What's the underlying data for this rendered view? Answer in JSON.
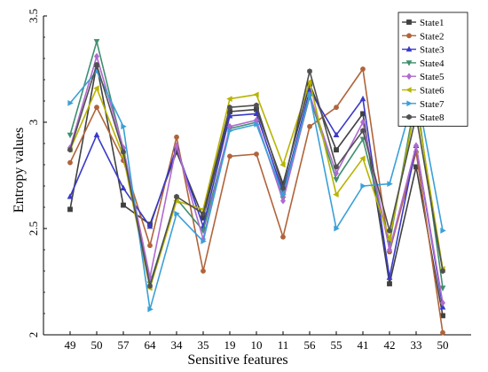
{
  "chart_data": {
    "type": "line",
    "xlabel": "Sensitive features",
    "ylabel": "Entropy values",
    "categories": [
      "49",
      "50",
      "57",
      "64",
      "34",
      "35",
      "19",
      "10",
      "11",
      "56",
      "55",
      "41",
      "42",
      "33",
      "50"
    ],
    "ylim": [
      2.0,
      3.5
    ],
    "yticks": [
      2,
      2.5,
      3,
      3.5
    ],
    "ytick_labels": [
      "2",
      "2.5",
      "3",
      "3.5"
    ],
    "grid": false,
    "legend_position": "top-right",
    "series": [
      {
        "name": "State1",
        "color": "#404040",
        "marker": "square",
        "values": [
          2.59,
          3.27,
          2.61,
          2.52,
          2.86,
          2.55,
          3.05,
          3.06,
          2.71,
          3.18,
          2.87,
          3.04,
          2.24,
          2.79,
          2.09
        ]
      },
      {
        "name": "State2",
        "color": "#b0643a",
        "marker": "circle",
        "values": [
          2.81,
          3.07,
          2.82,
          2.42,
          2.93,
          2.3,
          2.84,
          2.85,
          2.46,
          2.98,
          3.07,
          3.25,
          2.39,
          2.86,
          2.01
        ]
      },
      {
        "name": "State3",
        "color": "#3a3ac8",
        "marker": "triangle-up",
        "values": [
          2.65,
          2.94,
          2.69,
          2.51,
          2.88,
          2.51,
          3.03,
          3.04,
          2.67,
          3.15,
          2.94,
          3.11,
          2.27,
          2.89,
          2.13
        ]
      },
      {
        "name": "State4",
        "color": "#3f8f6f",
        "marker": "triangle-down",
        "values": [
          2.94,
          3.38,
          2.87,
          2.24,
          2.64,
          2.49,
          2.97,
          3.0,
          2.64,
          3.12,
          2.73,
          2.92,
          2.43,
          3.13,
          2.22
        ]
      },
      {
        "name": "State5",
        "color": "#b06ad0",
        "marker": "diamond",
        "values": [
          2.88,
          3.31,
          2.88,
          2.27,
          2.89,
          2.45,
          2.98,
          3.01,
          2.63,
          3.13,
          2.76,
          3.0,
          2.4,
          2.89,
          2.15
        ]
      },
      {
        "name": "State6",
        "color": "#b8b400",
        "marker": "triangle-left",
        "values": [
          2.87,
          3.16,
          2.84,
          2.22,
          2.63,
          2.59,
          3.11,
          3.13,
          2.8,
          3.19,
          2.66,
          2.83,
          2.45,
          3.09,
          2.31
        ]
      },
      {
        "name": "State7",
        "color": "#3aa0d8",
        "marker": "triangle-right",
        "values": [
          3.09,
          3.24,
          2.98,
          2.12,
          2.57,
          2.44,
          2.96,
          2.99,
          2.66,
          3.13,
          2.5,
          2.7,
          2.71,
          3.16,
          2.49
        ]
      },
      {
        "name": "State8",
        "color": "#505050",
        "marker": "hexagon",
        "values": [
          2.87,
          3.27,
          2.86,
          2.23,
          2.65,
          2.57,
          3.07,
          3.08,
          2.69,
          3.24,
          2.79,
          2.96,
          2.49,
          3.03,
          2.3
        ]
      }
    ]
  }
}
